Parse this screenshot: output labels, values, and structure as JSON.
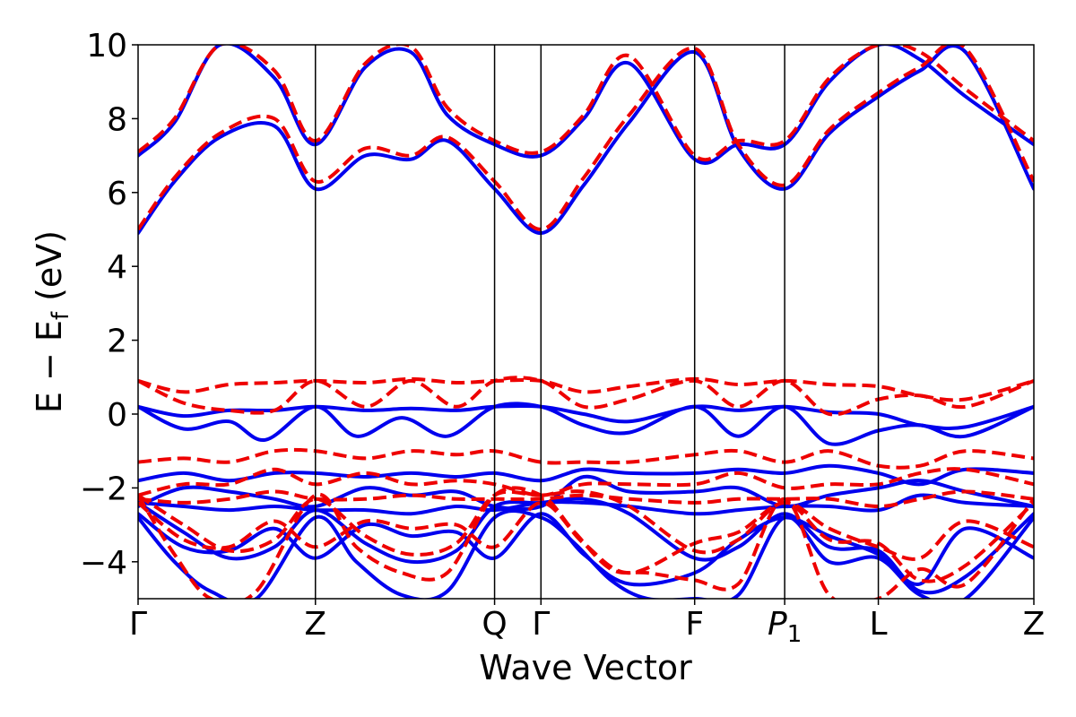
{
  "chart_data": {
    "type": "line",
    "title": "",
    "xlabel": "Wave Vector",
    "ylabel": "E − E_f (eV)",
    "ylabel_parts": {
      "main": "E − E",
      "sub": "f",
      "tail": " (eV)"
    },
    "ylim": [
      -5,
      10
    ],
    "xlim": [
      0,
      9.85
    ],
    "yticks": [
      -4,
      -2,
      0,
      2,
      4,
      6,
      8,
      10
    ],
    "ytick_labels": [
      "−4",
      "−2",
      "0",
      "2",
      "4",
      "6",
      "8",
      "10"
    ],
    "kpoints": [
      {
        "x": 0.0,
        "label": "Γ"
      },
      {
        "x": 1.95,
        "label": "Z"
      },
      {
        "x": 3.92,
        "label": "Q"
      },
      {
        "x": 4.43,
        "label": "Γ"
      },
      {
        "x": 6.12,
        "label": "F"
      },
      {
        "x": 7.11,
        "label": "P",
        "sub": "1"
      },
      {
        "x": 8.14,
        "label": "L"
      },
      {
        "x": 9.85,
        "label": "Z"
      }
    ],
    "grid": false,
    "legend": "none",
    "colors": {
      "blue_solid": "#0000ee",
      "red_dashed": "#ee0000"
    },
    "series": [
      {
        "style": "solid",
        "color": "#0000ee",
        "x": [
          0,
          0.4,
          0.9,
          1.5,
          1.95,
          2.5,
          3.0,
          3.4,
          3.92,
          4.43,
          4.9,
          5.4,
          6.12,
          6.6,
          7.11,
          7.6,
          8.14,
          8.6,
          9.1,
          9.85
        ],
        "y": [
          4.9,
          6.3,
          7.5,
          7.8,
          6.1,
          7.0,
          6.9,
          7.4,
          6.1,
          4.9,
          6.2,
          7.9,
          9.8,
          7.2,
          6.1,
          7.6,
          8.6,
          9.3,
          9.8,
          6.1
        ]
      },
      {
        "style": "dashed",
        "color": "#ee0000",
        "x": [
          0,
          0.4,
          0.9,
          1.5,
          1.95,
          2.5,
          3.0,
          3.4,
          3.92,
          4.43,
          4.9,
          5.4,
          6.12,
          6.6,
          7.11,
          7.6,
          8.14,
          8.6,
          9.1,
          9.85
        ],
        "y": [
          5.0,
          6.4,
          7.6,
          8.0,
          6.3,
          7.2,
          7.0,
          7.5,
          6.3,
          5.0,
          6.4,
          8.1,
          9.9,
          7.3,
          6.2,
          7.7,
          8.7,
          9.4,
          9.9,
          6.3
        ]
      },
      {
        "style": "solid",
        "color": "#0000ee",
        "x": [
          0,
          0.4,
          0.9,
          1.5,
          1.95,
          2.5,
          3.0,
          3.4,
          3.92,
          4.43,
          4.9,
          5.4,
          6.12,
          6.6,
          7.11,
          7.6,
          8.14,
          8.6,
          9.1,
          9.85
        ],
        "y": [
          7.0,
          7.9,
          10.0,
          9.1,
          7.3,
          9.4,
          9.8,
          8.1,
          7.3,
          7.0,
          8.0,
          9.5,
          6.9,
          7.3,
          7.3,
          9.0,
          10.0,
          9.6,
          8.6,
          7.3
        ]
      },
      {
        "style": "dashed",
        "color": "#ee0000",
        "x": [
          0,
          0.4,
          0.9,
          1.5,
          1.95,
          2.5,
          3.0,
          3.4,
          3.92,
          4.43,
          4.9,
          5.4,
          6.12,
          6.6,
          7.11,
          7.6,
          8.14,
          8.6,
          9.1,
          9.85
        ],
        "y": [
          7.1,
          8.0,
          10.0,
          9.3,
          7.4,
          9.5,
          9.95,
          8.3,
          7.4,
          7.1,
          8.1,
          9.7,
          7.0,
          7.4,
          7.4,
          9.1,
          10.0,
          9.8,
          8.8,
          7.4
        ]
      },
      {
        "style": "solid",
        "color": "#0000ee",
        "x": [
          0,
          0.5,
          1.0,
          1.4,
          1.95,
          2.4,
          2.9,
          3.4,
          3.92,
          4.43,
          4.9,
          5.4,
          6.12,
          6.6,
          7.11,
          7.6,
          8.14,
          8.6,
          9.1,
          9.85
        ],
        "y": [
          0.2,
          -0.4,
          -0.2,
          -0.7,
          0.2,
          -0.6,
          -0.1,
          -0.6,
          0.2,
          0.2,
          -0.3,
          -0.5,
          0.2,
          -0.6,
          0.2,
          -0.8,
          -0.45,
          -0.3,
          -0.6,
          0.2
        ]
      },
      {
        "style": "solid",
        "color": "#0000ee",
        "x": [
          0,
          0.5,
          1.0,
          1.5,
          1.95,
          2.5,
          3.0,
          3.5,
          3.92,
          4.43,
          4.9,
          5.4,
          6.12,
          6.6,
          7.11,
          7.6,
          8.14,
          8.6,
          9.1,
          9.85
        ],
        "y": [
          0.2,
          -0.05,
          0.1,
          0.1,
          0.2,
          0.1,
          0.15,
          0.1,
          0.2,
          0.2,
          0.0,
          -0.2,
          0.2,
          0.1,
          0.2,
          0.05,
          0.0,
          -0.3,
          -0.35,
          0.2
        ]
      },
      {
        "style": "dashed",
        "color": "#ee0000",
        "x": [
          0,
          0.5,
          1.0,
          1.5,
          1.95,
          2.5,
          3.0,
          3.5,
          3.92,
          4.43,
          4.9,
          5.4,
          6.12,
          6.6,
          7.11,
          7.6,
          8.14,
          8.6,
          9.1,
          9.85
        ],
        "y": [
          0.9,
          0.6,
          0.8,
          0.85,
          0.9,
          0.85,
          0.95,
          0.85,
          0.9,
          0.9,
          0.6,
          0.75,
          0.95,
          0.8,
          0.9,
          0.8,
          0.75,
          0.5,
          0.4,
          0.9
        ]
      },
      {
        "style": "dashed",
        "color": "#ee0000",
        "x": [
          0,
          0.5,
          1.0,
          1.5,
          1.95,
          2.5,
          3.0,
          3.5,
          3.92,
          4.43,
          4.9,
          5.4,
          6.12,
          6.6,
          7.11,
          7.6,
          8.14,
          8.6,
          9.1,
          9.85
        ],
        "y": [
          0.9,
          0.3,
          0.1,
          0.1,
          0.9,
          0.2,
          0.9,
          0.2,
          0.9,
          0.9,
          0.2,
          0.4,
          0.9,
          0.2,
          0.9,
          0.0,
          0.4,
          0.5,
          0.2,
          0.9
        ]
      },
      {
        "style": "solid",
        "color": "#0000ee",
        "x": [
          0,
          0.5,
          1.0,
          1.5,
          1.95,
          2.5,
          3.0,
          3.5,
          3.92,
          4.43,
          4.9,
          5.4,
          6.12,
          6.6,
          7.11,
          7.6,
          8.14,
          8.6,
          9.1,
          9.85
        ],
        "y": [
          -1.8,
          -1.6,
          -1.8,
          -1.6,
          -1.6,
          -1.7,
          -1.6,
          -1.7,
          -1.6,
          -1.8,
          -1.5,
          -1.6,
          -1.6,
          -1.5,
          -1.6,
          -1.4,
          -1.6,
          -1.9,
          -1.5,
          -1.6
        ]
      },
      {
        "style": "solid",
        "color": "#0000ee",
        "x": [
          0,
          0.5,
          1.0,
          1.5,
          1.95,
          2.5,
          3.0,
          3.5,
          3.92,
          4.43,
          4.9,
          5.4,
          6.12,
          6.6,
          7.11,
          7.6,
          8.14,
          8.6,
          9.1,
          9.85
        ],
        "y": [
          -2.5,
          -2.0,
          -2.1,
          -2.3,
          -2.5,
          -2.0,
          -2.2,
          -2.1,
          -2.5,
          -2.5,
          -1.7,
          -2.1,
          -2.1,
          -2.0,
          -2.5,
          -2.2,
          -2.0,
          -1.8,
          -2.1,
          -2.5
        ]
      },
      {
        "style": "solid",
        "color": "#0000ee",
        "x": [
          0,
          0.5,
          1.0,
          1.5,
          1.95,
          2.5,
          3.0,
          3.5,
          3.92,
          4.43,
          4.9,
          5.4,
          6.12,
          6.6,
          7.11,
          7.6,
          8.14,
          8.6,
          9.1,
          9.85
        ],
        "y": [
          -2.4,
          -2.5,
          -2.6,
          -2.5,
          -2.6,
          -2.6,
          -2.7,
          -2.5,
          -2.6,
          -2.4,
          -2.4,
          -2.5,
          -2.7,
          -2.6,
          -2.5,
          -2.5,
          -2.6,
          -2.2,
          -2.4,
          -2.5
        ]
      },
      {
        "style": "dashed",
        "color": "#ee0000",
        "x": [
          0,
          0.5,
          1.0,
          1.5,
          1.95,
          2.5,
          3.0,
          3.5,
          3.92,
          4.43,
          4.9,
          5.4,
          6.12,
          6.6,
          7.11,
          7.6,
          8.14,
          8.6,
          9.1,
          9.85
        ],
        "y": [
          -1.3,
          -1.2,
          -1.3,
          -1.0,
          -1.0,
          -1.2,
          -1.0,
          -1.1,
          -1.0,
          -1.3,
          -1.3,
          -1.3,
          -1.1,
          -1.0,
          -1.3,
          -1.0,
          -1.4,
          -1.4,
          -1.0,
          -1.2
        ]
      },
      {
        "style": "dashed",
        "color": "#ee0000",
        "x": [
          0,
          0.5,
          1.0,
          1.5,
          1.95,
          2.5,
          3.0,
          3.5,
          3.92,
          4.43,
          4.9,
          5.4,
          6.12,
          6.6,
          7.11,
          7.6,
          8.14,
          8.6,
          9.1,
          9.85
        ],
        "y": [
          -2.2,
          -1.9,
          -1.9,
          -1.5,
          -1.9,
          -1.6,
          -1.9,
          -1.8,
          -1.9,
          -2.2,
          -1.9,
          -1.9,
          -1.9,
          -1.6,
          -2.0,
          -1.9,
          -1.9,
          -1.6,
          -1.5,
          -1.9
        ]
      },
      {
        "style": "dashed",
        "color": "#ee0000",
        "x": [
          0,
          0.5,
          1.0,
          1.5,
          1.95,
          2.5,
          3.0,
          3.5,
          3.92,
          4.43,
          4.9,
          5.4,
          6.12,
          6.6,
          7.11,
          7.6,
          8.14,
          8.6,
          9.1,
          9.85
        ],
        "y": [
          -2.3,
          -2.4,
          -2.3,
          -2.1,
          -2.3,
          -2.3,
          -2.2,
          -2.3,
          -2.3,
          -2.3,
          -2.2,
          -2.3,
          -2.4,
          -2.3,
          -2.3,
          -2.3,
          -2.5,
          -2.3,
          -2.1,
          -2.3
        ]
      },
      {
        "style": "solid",
        "color": "#0000ee",
        "x": [
          0,
          0.4,
          0.8,
          1.3,
          1.95,
          2.4,
          2.9,
          3.4,
          3.92,
          4.43,
          4.8,
          5.2,
          5.6,
          6.12,
          6.6,
          7.11,
          7.6,
          8.14,
          8.6,
          9.1,
          9.85
        ],
        "y": [
          -2.8,
          -4.0,
          -4.8,
          -5.0,
          -2.8,
          -4.0,
          -4.9,
          -4.8,
          -2.8,
          -2.8,
          -3.5,
          -4.5,
          -5.0,
          -5.0,
          -4.9,
          -2.8,
          -4.0,
          -3.9,
          -4.9,
          -5.0,
          -2.8
        ]
      },
      {
        "style": "solid",
        "color": "#0000ee",
        "x": [
          0,
          0.5,
          1.0,
          1.5,
          1.95,
          2.5,
          3.0,
          3.5,
          3.92,
          4.43,
          4.9,
          5.4,
          6.12,
          6.6,
          7.11,
          7.6,
          8.14,
          8.6,
          9.1,
          9.85
        ],
        "y": [
          -2.7,
          -3.6,
          -3.7,
          -3.1,
          -3.9,
          -3.0,
          -3.3,
          -3.2,
          -3.9,
          -2.7,
          -3.8,
          -4.6,
          -4.3,
          -3.4,
          -2.8,
          -3.3,
          -3.8,
          -4.6,
          -3.1,
          -3.9
        ]
      },
      {
        "style": "solid",
        "color": "#0000ee",
        "x": [
          0,
          0.5,
          1.0,
          1.5,
          1.95,
          2.5,
          3.0,
          3.5,
          3.92,
          4.43,
          4.9,
          5.4,
          6.12,
          6.6,
          7.11,
          7.6,
          8.14,
          8.6,
          9.1,
          9.85
        ],
        "y": [
          -2.4,
          -3.2,
          -3.9,
          -3.6,
          -2.6,
          -3.5,
          -4.0,
          -3.7,
          -2.5,
          -2.4,
          -2.3,
          -2.7,
          -3.9,
          -3.6,
          -2.7,
          -3.6,
          -3.7,
          -4.8,
          -4.4,
          -2.7
        ]
      },
      {
        "style": "dashed",
        "color": "#ee0000",
        "x": [
          0,
          0.4,
          0.8,
          1.3,
          1.95,
          2.4,
          2.9,
          3.4,
          3.92,
          4.43,
          4.8,
          5.2,
          5.6,
          6.12,
          6.6,
          7.11,
          7.6,
          8.14,
          8.6,
          9.1,
          9.85
        ],
        "y": [
          -2.2,
          -3.8,
          -5.0,
          -4.8,
          -2.2,
          -3.6,
          -4.3,
          -4.3,
          -2.2,
          -2.2,
          -3.2,
          -4.2,
          -4.3,
          -4.5,
          -4.6,
          -2.3,
          -4.9,
          -5.0,
          -4.2,
          -4.6,
          -2.3
        ]
      },
      {
        "style": "dashed",
        "color": "#ee0000",
        "x": [
          0,
          0.5,
          1.0,
          1.5,
          1.95,
          2.5,
          3.0,
          3.5,
          3.92,
          4.43,
          4.9,
          5.4,
          6.12,
          6.6,
          7.11,
          7.6,
          8.14,
          8.6,
          9.1,
          9.85
        ],
        "y": [
          -2.4,
          -3.4,
          -3.6,
          -2.9,
          -3.6,
          -2.9,
          -3.1,
          -3.0,
          -3.6,
          -2.4,
          -3.5,
          -4.3,
          -3.5,
          -3.2,
          -2.4,
          -3.1,
          -3.6,
          -3.9,
          -2.9,
          -3.6
        ]
      },
      {
        "style": "dashed",
        "color": "#ee0000",
        "x": [
          0,
          0.5,
          1.0,
          1.5,
          1.95,
          2.5,
          3.0,
          3.5,
          3.92,
          4.43,
          4.9,
          5.4,
          6.12,
          6.6,
          7.11,
          7.6,
          8.14,
          8.6,
          9.1,
          9.85
        ],
        "y": [
          -2.2,
          -3.0,
          -3.7,
          -3.4,
          -2.3,
          -3.3,
          -3.8,
          -3.5,
          -2.2,
          -2.2,
          -2.1,
          -2.5,
          -3.7,
          -3.4,
          -2.4,
          -3.4,
          -3.5,
          -4.5,
          -4.1,
          -2.4
        ]
      }
    ]
  }
}
